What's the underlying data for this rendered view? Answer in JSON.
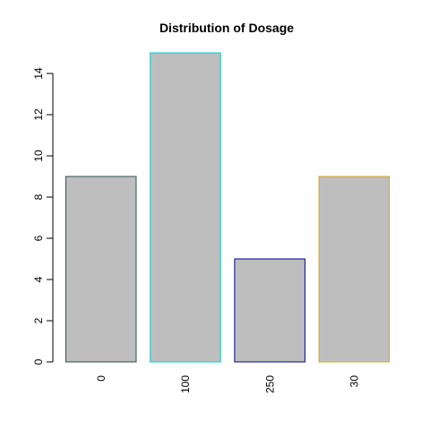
{
  "chart_data": {
    "type": "bar",
    "title": "Distribution of Dosage",
    "xlabel": "",
    "ylabel": "",
    "categories": [
      "0",
      "100",
      "250",
      "30"
    ],
    "values": [
      9,
      15,
      5,
      9
    ],
    "ylim": [
      0,
      15
    ],
    "y_ticks": [
      0,
      2,
      4,
      6,
      8,
      10,
      12,
      14
    ],
    "grid": false,
    "legend": "none",
    "x_tick_label_orientation": "vertical",
    "bar_fill_color": "#bebebe",
    "bar_border_colors": [
      "#2f4f4f",
      "#00ced1",
      "#00008b",
      "#daa520"
    ]
  }
}
